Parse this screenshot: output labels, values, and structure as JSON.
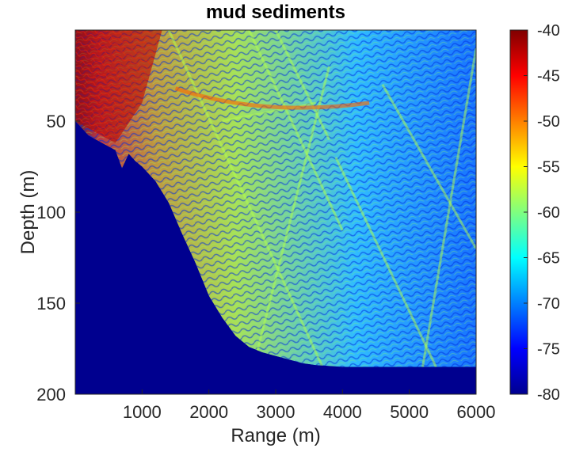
{
  "chart_data": {
    "type": "heatmap",
    "title": "mud sediments",
    "xlabel": "Range (m)",
    "ylabel": "Depth (m)",
    "xlim": [
      0,
      6000
    ],
    "ylim": [
      200,
      0
    ],
    "xticks": [
      "1000",
      "2000",
      "3000",
      "4000",
      "5000",
      "6000"
    ],
    "yticks": [
      "50",
      "100",
      "150",
      "200"
    ],
    "colorbar": {
      "min": -80,
      "max": -40,
      "colormap": "jet",
      "ticks": [
        "-40",
        "-45",
        "-50",
        "-55",
        "-60",
        "-65",
        "-70",
        "-75",
        "-80"
      ]
    },
    "seabed_depth_profile": {
      "range_m": [
        0,
        200,
        400,
        600,
        700,
        800,
        900,
        1000,
        1200,
        1400,
        1600,
        1800,
        2000,
        2200,
        2400,
        2600,
        2800,
        3000,
        3200,
        3400,
        3600,
        4000,
        5000,
        6000
      ],
      "depth_m": [
        50,
        58,
        62,
        66,
        76,
        68,
        72,
        75,
        83,
        95,
        112,
        128,
        146,
        158,
        168,
        174,
        177,
        179,
        181,
        183,
        184,
        185,
        185,
        185
      ]
    },
    "description_levels": {
      "near_surface_source_region": -42,
      "upper_water_column": -58,
      "deep_water_column": -70,
      "below_seabed": -80
    }
  },
  "colors": {
    "background": "#ffffff",
    "below_seabed": "#00008f",
    "axis": "#262626"
  }
}
